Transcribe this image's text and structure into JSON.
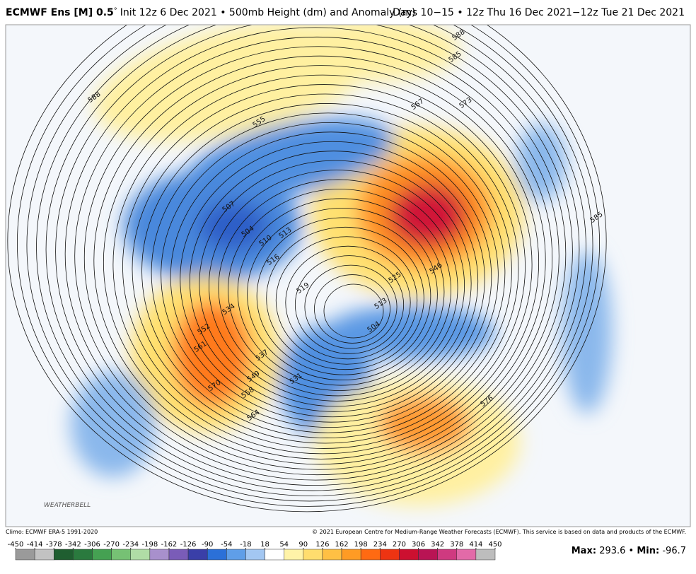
{
  "header": {
    "title_bold": "ECMWF Ens [M] 0.5",
    "title_degree": "°",
    "title_rest": "Init 12z 6 Dec 2021 • 500mb Height (dm) and Anomaly (m)",
    "valid": "Days 10−15 • 12z Thu 16 Dec 2021−12z Tue 21 Dec 2021"
  },
  "contour_labels": [
    588,
    555,
    507,
    504,
    510,
    513,
    516,
    519,
    534,
    552,
    561,
    537,
    549,
    570,
    558,
    564,
    531,
    513,
    504,
    525,
    546,
    573,
    567,
    588,
    585,
    576,
    585
  ],
  "logo": "WEATHERBELL",
  "footer": {
    "climo": "Climo: ECMWF ERA-5 1991-2020",
    "copyright": "© 2021 European Centre for Medium-Range Weather Forecasts (ECMWF). This service is based on data and products of the ECMWF.",
    "max_label": "Max:",
    "max": 293.6,
    "sep": "•",
    "min_label": "Min:",
    "min": -96.7
  },
  "colorbar": {
    "ticks": [
      -450,
      -414,
      -378,
      -342,
      -306,
      -270,
      -234,
      -198,
      -162,
      -126,
      -90,
      -54,
      -18,
      18,
      54,
      90,
      126,
      162,
      198,
      234,
      270,
      306,
      342,
      378,
      414,
      450
    ],
    "colors": [
      "#9a9a9a",
      "#c2c2c2",
      "#1f5e30",
      "#2a7a3e",
      "#45a152",
      "#76c174",
      "#b0dca6",
      "#a890cc",
      "#7a5cb8",
      "#3a3fa8",
      "#2b70d8",
      "#5f9ee8",
      "#a3c7f2",
      "#ffffff",
      "#fff3a8",
      "#ffdd6e",
      "#ffc044",
      "#ff9b24",
      "#ff6a12",
      "#ee3412",
      "#cc1030",
      "#b91454",
      "#cf3a80",
      "#e26aa8",
      "#bdbdbd"
    ]
  }
}
